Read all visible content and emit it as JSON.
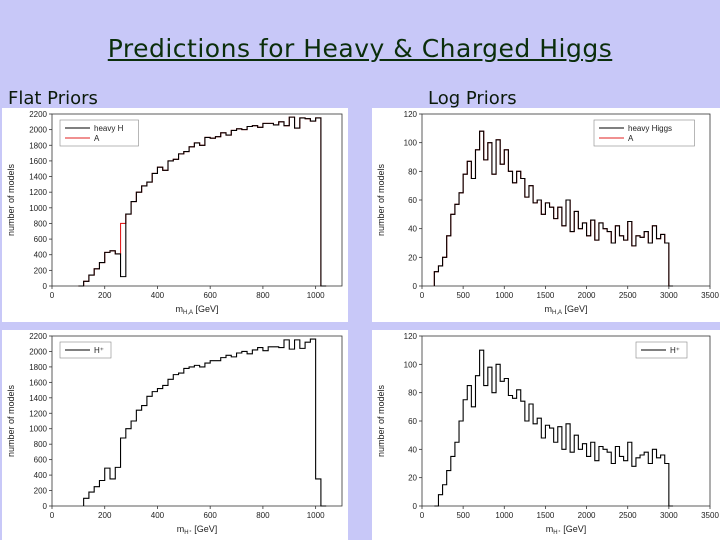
{
  "slide": {
    "title": "Predictions for Heavy & Charged Higgs",
    "flat_label": "Flat Priors",
    "log_label": "Log Priors",
    "background": "#c8c8f8"
  },
  "chart_data": [
    {
      "type": "line",
      "step": true,
      "xlabel": "m_{H,A} [GeV]",
      "ylabel": "number of models",
      "xlim": [
        0,
        1100
      ],
      "ylim": [
        0,
        2200
      ],
      "xticks": [
        0,
        200,
        400,
        600,
        800,
        1000
      ],
      "yticks": [
        0,
        200,
        400,
        600,
        800,
        1000,
        1200,
        1400,
        1600,
        1800,
        2000,
        2200
      ],
      "legend": "top-left",
      "x": [
        100,
        120,
        140,
        160,
        180,
        200,
        220,
        240,
        260,
        280,
        300,
        320,
        340,
        360,
        380,
        400,
        420,
        440,
        460,
        480,
        500,
        520,
        540,
        560,
        580,
        600,
        620,
        640,
        660,
        680,
        700,
        720,
        740,
        760,
        780,
        800,
        820,
        840,
        860,
        880,
        900,
        920,
        940,
        960,
        980,
        1000,
        1020
      ],
      "series": [
        {
          "name": "heavy H",
          "color": "#000000",
          "values": [
            0,
            60,
            140,
            220,
            300,
            430,
            450,
            410,
            120,
            920,
            1080,
            1200,
            1280,
            1330,
            1440,
            1520,
            1480,
            1600,
            1620,
            1690,
            1720,
            1780,
            1830,
            1800,
            1900,
            1890,
            1910,
            1960,
            1930,
            1990,
            2010,
            2000,
            2040,
            2050,
            2030,
            2080,
            2080,
            2060,
            2100,
            2050,
            2160,
            2020,
            2150,
            2140,
            2110,
            2150,
            0
          ]
        },
        {
          "name": "A",
          "color": "#e02020",
          "values": [
            0,
            60,
            140,
            220,
            300,
            430,
            450,
            410,
            800,
            920,
            1080,
            1200,
            1280,
            1330,
            1440,
            1520,
            1480,
            1600,
            1620,
            1690,
            1720,
            1780,
            1830,
            1800,
            1900,
            1890,
            1910,
            1960,
            1930,
            1990,
            2010,
            2000,
            2040,
            2050,
            2030,
            2080,
            2080,
            2060,
            2100,
            2050,
            2160,
            2020,
            2150,
            2140,
            2110,
            2150,
            0
          ]
        }
      ]
    },
    {
      "type": "line",
      "step": true,
      "xlabel": "m_{H,A} [GeV]",
      "ylabel": "number of models",
      "xlim": [
        0,
        3500
      ],
      "ylim": [
        0,
        120
      ],
      "xticks": [
        0,
        500,
        1000,
        1500,
        2000,
        2500,
        3000,
        3500
      ],
      "yticks": [
        0,
        20,
        40,
        60,
        80,
        100,
        120
      ],
      "legend": "top-right",
      "x": [
        150,
        200,
        250,
        300,
        350,
        400,
        450,
        500,
        550,
        600,
        650,
        700,
        750,
        800,
        850,
        900,
        950,
        1000,
        1050,
        1100,
        1150,
        1200,
        1250,
        1300,
        1350,
        1400,
        1450,
        1500,
        1550,
        1600,
        1650,
        1700,
        1750,
        1800,
        1850,
        1900,
        1950,
        2000,
        2050,
        2100,
        2150,
        2200,
        2250,
        2300,
        2350,
        2400,
        2450,
        2500,
        2550,
        2600,
        2650,
        2700,
        2750,
        2800,
        2850,
        2900,
        2950,
        3000
      ],
      "series": [
        {
          "name": "heavy Higgs",
          "color": "#000000",
          "values": [
            10,
            14,
            20,
            35,
            50,
            57,
            65,
            78,
            87,
            75,
            95,
            108,
            88,
            100,
            78,
            102,
            85,
            95,
            80,
            72,
            80,
            75,
            62,
            70,
            58,
            60,
            50,
            58,
            55,
            47,
            55,
            42,
            60,
            38,
            52,
            40,
            44,
            35,
            46,
            32,
            44,
            40,
            38,
            30,
            42,
            35,
            32,
            45,
            28,
            35,
            34,
            38,
            30,
            42,
            33,
            36,
            30,
            0
          ]
        },
        {
          "name": "A",
          "color": "#e02020",
          "values": [
            10,
            14,
            20,
            35,
            50,
            57,
            65,
            78,
            87,
            75,
            95,
            108,
            88,
            100,
            78,
            102,
            85,
            95,
            80,
            72,
            80,
            75,
            62,
            70,
            58,
            60,
            50,
            58,
            55,
            47,
            55,
            42,
            60,
            38,
            52,
            40,
            44,
            35,
            46,
            32,
            44,
            40,
            38,
            30,
            42,
            35,
            32,
            45,
            28,
            35,
            34,
            38,
            30,
            42,
            33,
            36,
            30,
            0
          ]
        }
      ]
    },
    {
      "type": "line",
      "step": true,
      "xlabel": "m_{H⁺} [GeV]",
      "ylabel": "number of models",
      "xlim": [
        0,
        1100
      ],
      "ylim": [
        0,
        2200
      ],
      "xticks": [
        0,
        200,
        400,
        600,
        800,
        1000
      ],
      "yticks": [
        0,
        200,
        400,
        600,
        800,
        1000,
        1200,
        1400,
        1600,
        1800,
        2000,
        2200
      ],
      "legend": "top-left",
      "x": [
        120,
        140,
        160,
        180,
        200,
        220,
        240,
        260,
        280,
        300,
        320,
        340,
        360,
        380,
        400,
        420,
        440,
        460,
        480,
        500,
        520,
        540,
        560,
        580,
        600,
        620,
        640,
        660,
        680,
        700,
        720,
        740,
        760,
        780,
        800,
        820,
        840,
        860,
        880,
        900,
        920,
        940,
        960,
        980,
        1000,
        1020
      ],
      "series": [
        {
          "name": "H⁺",
          "color": "#000000",
          "values": [
            100,
            180,
            250,
            330,
            490,
            350,
            500,
            880,
            1000,
            1100,
            1240,
            1300,
            1420,
            1480,
            1520,
            1560,
            1640,
            1700,
            1720,
            1780,
            1800,
            1820,
            1800,
            1850,
            1880,
            1880,
            1920,
            1950,
            1930,
            1980,
            2000,
            1970,
            2020,
            2050,
            2010,
            2060,
            2060,
            2050,
            2150,
            2030,
            2150,
            2040,
            2120,
            2160,
            350,
            0
          ]
        }
      ]
    },
    {
      "type": "line",
      "step": true,
      "xlabel": "m_{H⁺} [GeV]",
      "ylabel": "number of models",
      "xlim": [
        0,
        3500
      ],
      "ylim": [
        0,
        120
      ],
      "xticks": [
        0,
        500,
        1000,
        1500,
        2000,
        2500,
        3000,
        3500
      ],
      "yticks": [
        0,
        20,
        40,
        60,
        80,
        100,
        120
      ],
      "legend": "top-right",
      "x": [
        150,
        200,
        250,
        300,
        350,
        400,
        450,
        500,
        550,
        600,
        650,
        700,
        750,
        800,
        850,
        900,
        950,
        1000,
        1050,
        1100,
        1150,
        1200,
        1250,
        1300,
        1350,
        1400,
        1450,
        1500,
        1550,
        1600,
        1650,
        1700,
        1750,
        1800,
        1850,
        1900,
        1950,
        2000,
        2050,
        2100,
        2150,
        2200,
        2250,
        2300,
        2350,
        2400,
        2450,
        2500,
        2550,
        2600,
        2650,
        2700,
        2750,
        2800,
        2850,
        2900,
        2950,
        3000
      ],
      "series": [
        {
          "name": "H⁺",
          "color": "#000000",
          "values": [
            0,
            8,
            15,
            25,
            35,
            45,
            60,
            75,
            85,
            70,
            92,
            110,
            85,
            98,
            80,
            100,
            88,
            90,
            78,
            76,
            82,
            74,
            60,
            72,
            58,
            62,
            48,
            57,
            55,
            45,
            56,
            40,
            58,
            38,
            50,
            40,
            44,
            35,
            45,
            32,
            42,
            40,
            38,
            30,
            42,
            35,
            32,
            45,
            28,
            34,
            36,
            38,
            30,
            40,
            34,
            36,
            30,
            0
          ]
        }
      ]
    }
  ]
}
